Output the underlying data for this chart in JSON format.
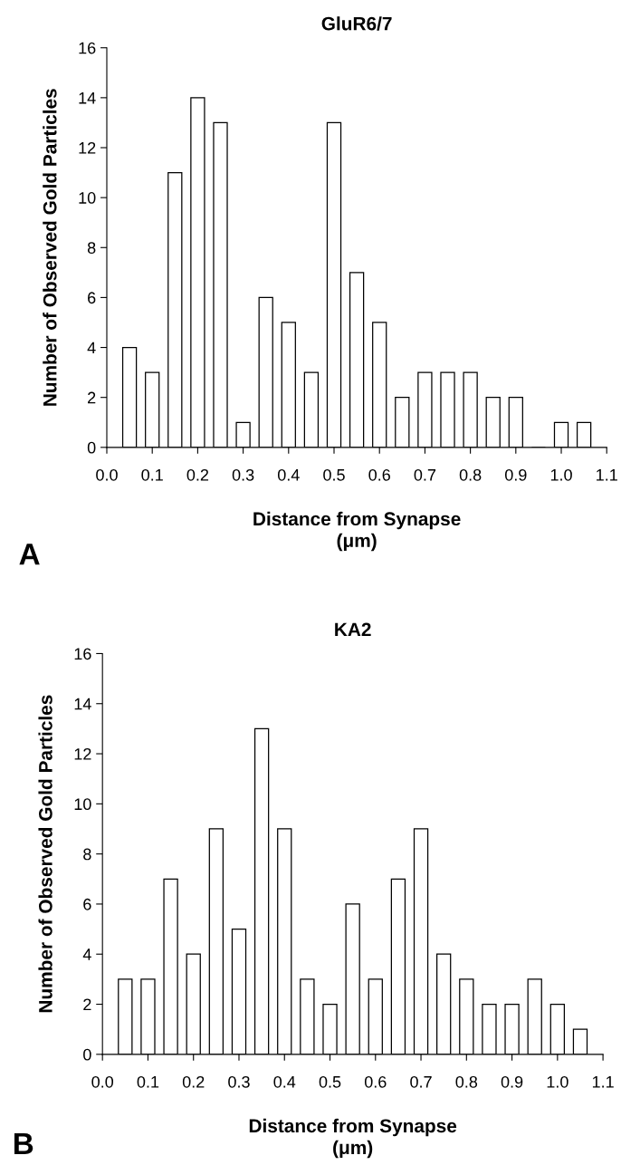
{
  "chart_data": [
    {
      "type": "bar",
      "title": "GluR6/7",
      "xlabel": "Distance from Synapse\n(μm)",
      "ylabel": "Number of Observed Gold Particles",
      "x": [
        0.05,
        0.1,
        0.15,
        0.2,
        0.25,
        0.3,
        0.35,
        0.4,
        0.45,
        0.5,
        0.55,
        0.6,
        0.65,
        0.7,
        0.75,
        0.8,
        0.85,
        0.9,
        0.95,
        1.0,
        1.05
      ],
      "values": [
        4,
        3,
        11,
        14,
        13,
        1,
        6,
        5,
        3,
        13,
        7,
        5,
        2,
        3,
        3,
        3,
        2,
        2,
        0,
        1,
        1
      ],
      "color": "#ffffff",
      "xlim": [
        0,
        1.1
      ],
      "xticks": [
        {
          "value": 0,
          "label": "0.0"
        },
        {
          "value": 0.1,
          "label": "0.1"
        },
        {
          "value": 0.2,
          "label": "0.2"
        },
        {
          "value": 0.3,
          "label": "0.3"
        },
        {
          "value": 0.4,
          "label": "0.4"
        },
        {
          "value": 0.5,
          "label": "0.5"
        },
        {
          "value": 0.6,
          "label": "0.6"
        },
        {
          "value": 0.7,
          "label": "0.7"
        },
        {
          "value": 0.8,
          "label": "0.8"
        },
        {
          "value": 0.9,
          "label": "0.9"
        },
        {
          "value": 1.0,
          "label": "1.0"
        },
        {
          "value": 1.1,
          "label": "1.1"
        }
      ],
      "ylim": [
        0,
        16
      ],
      "yticks": [
        0,
        2,
        4,
        6,
        8,
        10,
        12,
        14,
        16
      ],
      "annotations": [
        "A"
      ]
    },
    {
      "type": "bar",
      "title": "KA2",
      "xlabel": "Distance from Synapse\n(μm)",
      "ylabel": "Number of Observed Gold Particles",
      "x": [
        0.05,
        0.1,
        0.15,
        0.2,
        0.25,
        0.3,
        0.35,
        0.4,
        0.45,
        0.5,
        0.55,
        0.6,
        0.65,
        0.7,
        0.75,
        0.8,
        0.85,
        0.9,
        0.95,
        1.0,
        1.05
      ],
      "values": [
        3,
        3,
        7,
        4,
        9,
        5,
        13,
        9,
        3,
        2,
        6,
        3,
        7,
        9,
        4,
        3,
        2,
        2,
        3,
        2,
        1
      ],
      "color": "#ffffff",
      "xlim": [
        0,
        1.1
      ],
      "xticks": [
        {
          "value": 0,
          "label": "0.0"
        },
        {
          "value": 0.1,
          "label": "0.1"
        },
        {
          "value": 0.2,
          "label": "0.2"
        },
        {
          "value": 0.3,
          "label": "0.3"
        },
        {
          "value": 0.4,
          "label": "0.4"
        },
        {
          "value": 0.5,
          "label": "0.5"
        },
        {
          "value": 0.6,
          "label": "0.6"
        },
        {
          "value": 0.7,
          "label": "0.7"
        },
        {
          "value": 0.8,
          "label": "0.8"
        },
        {
          "value": 0.9,
          "label": "0.9"
        },
        {
          "value": 1.0,
          "label": "1.0"
        },
        {
          "value": 1.1,
          "label": "1.1"
        }
      ],
      "ylim": [
        0,
        16
      ],
      "yticks": [
        0,
        2,
        4,
        6,
        8,
        10,
        12,
        14,
        16
      ],
      "annotations": [
        "B"
      ]
    }
  ]
}
